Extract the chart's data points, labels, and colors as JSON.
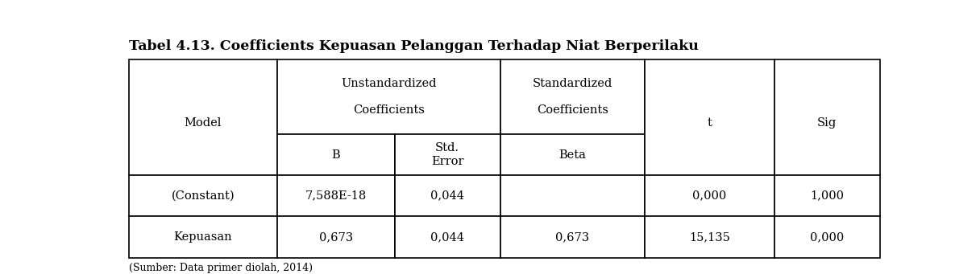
{
  "title": "Tabel 4.13. Coefficients Kepuasan Pelanggan Terhadap Niat Berperilaku",
  "footer": "(Sumber: Data primer diolah, 2014)",
  "rows": [
    [
      "(Constant)",
      "7,588E-18",
      "0,044",
      "",
      "0,000",
      "1,000"
    ],
    [
      "Kepuasan",
      "0,673",
      "0,044",
      "0,673",
      "15,135",
      "0,000"
    ]
  ],
  "background_color": "#ffffff",
  "text_color": "#000000",
  "font_size": 10.5,
  "title_font_size": 12.5,
  "footer_font_size": 9
}
